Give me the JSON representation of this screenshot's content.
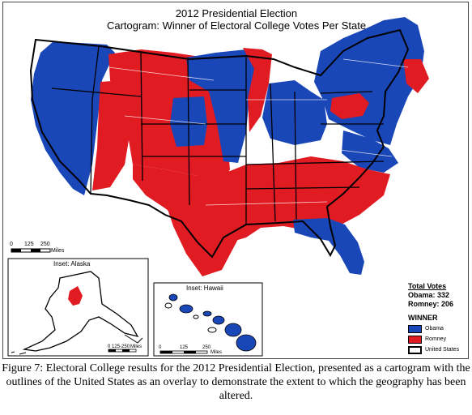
{
  "map": {
    "title": "2012 Presidential Election",
    "subtitle": "Cartogram: Winner of Electoral College Votes Per State",
    "scale_main": {
      "ticks": [
        "0",
        "125",
        "250"
      ],
      "unit": "Miles"
    },
    "alaska": {
      "title": "Inset: Alaska",
      "ticks": [
        "0",
        "125",
        "250"
      ],
      "unit": "Miles"
    },
    "hawaii": {
      "title": "Inset: Hawaii",
      "ticks": [
        "0",
        "125",
        "250"
      ],
      "unit": "Miles"
    }
  },
  "legend": {
    "votes_header": "Total Votes",
    "obama_votes": "Obama: 332",
    "romney_votes": "Romney: 206",
    "winner_header": "WINNER",
    "items": [
      {
        "label": "Obama",
        "color": "#1a47b8"
      },
      {
        "label": "Romney",
        "color": "#e01b22"
      },
      {
        "label": "United States",
        "color": "#ffffff"
      }
    ]
  },
  "caption": "Figure 7: Electoral College results for the 2012 Presidential Election, presented as a cartogram with the outlines of the United States as an overlay to demonstrate the extent to which the geography has been altered."
}
